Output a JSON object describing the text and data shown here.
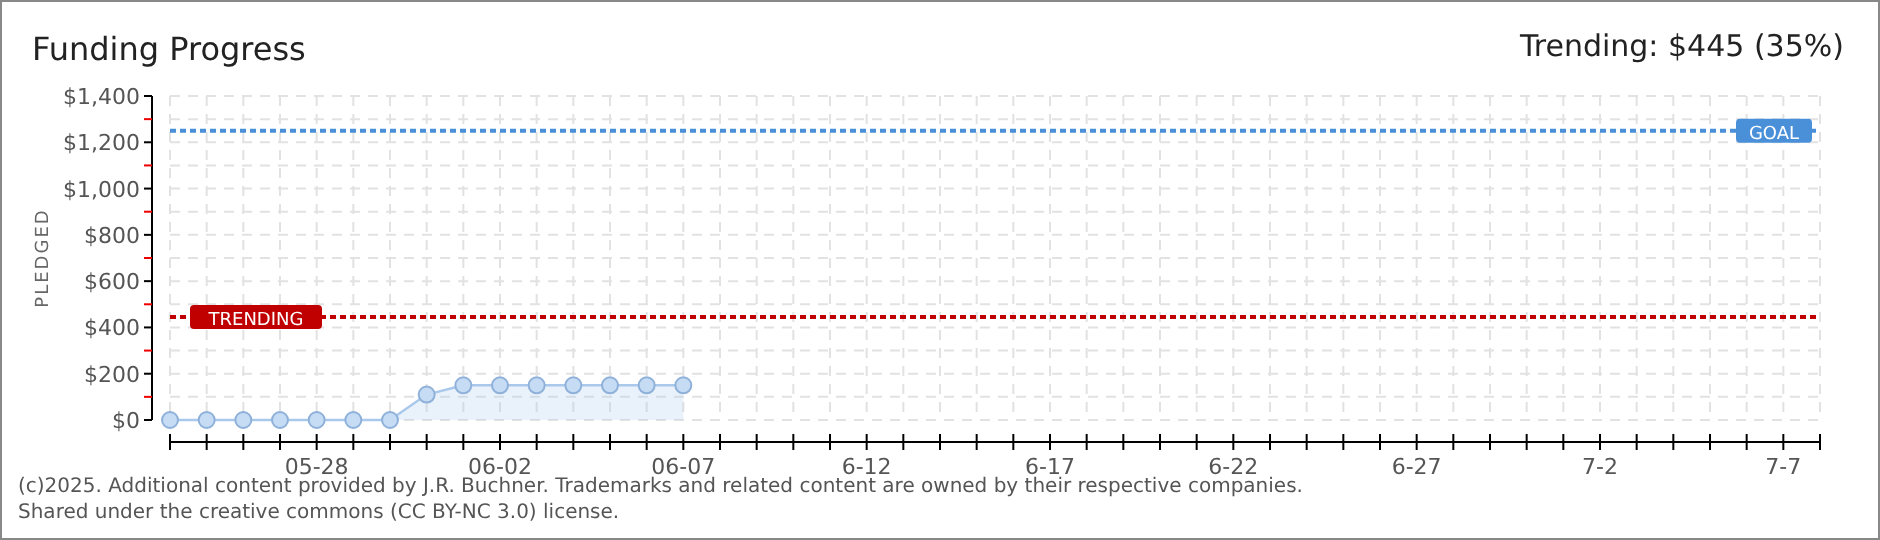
{
  "chart_data": {
    "type": "area",
    "title": "Funding Progress",
    "ylabel": "PLEDGED",
    "annotations": [
      "Trending: $445 (35%)",
      "(c)2025. Additional content provided by J.R. Buchner. Trademarks and related content are owned by their respective companies.",
      "Shared under the creative commons (CC BY-NC 3.0) license."
    ],
    "x": [
      "--05-24",
      "--05-25",
      "--05-26",
      "--05-27",
      "--05-28",
      "--05-29",
      "--05-30",
      "--05-31",
      "--06-01",
      "--06-02",
      "--06-03",
      "--06-04",
      "--06-05",
      "--06-06",
      "--06-07"
    ],
    "series": [
      {
        "color": "#a9c8ec",
        "values": [
          0,
          0,
          0,
          0,
          0,
          0,
          0,
          110,
          150,
          150,
          150,
          150,
          150,
          150,
          150
        ]
      }
    ],
    "marker": "circle",
    "grid": true,
    "xlim": [
      "--05-24",
      "--07-08"
    ],
    "xticks": [
      {
        "value": "--05-24",
        "label": null
      },
      {
        "value": "--05-25",
        "label": null
      },
      {
        "value": "--05-26",
        "label": null
      },
      {
        "value": "--05-27",
        "label": null
      },
      {
        "value": "--05-28",
        "label": "05-28"
      },
      {
        "value": "--05-29",
        "label": null
      },
      {
        "value": "--05-30",
        "label": null
      },
      {
        "value": "--05-31",
        "label": null
      },
      {
        "value": "--06-01",
        "label": null
      },
      {
        "value": "--06-02",
        "label": "06-02"
      },
      {
        "value": "--06-03",
        "label": null
      },
      {
        "value": "--06-04",
        "label": null
      },
      {
        "value": "--06-05",
        "label": null
      },
      {
        "value": "--06-06",
        "label": null
      },
      {
        "value": "--06-07",
        "label": "06-07"
      },
      {
        "value": "--06-08",
        "label": null
      },
      {
        "value": "--06-09",
        "label": null
      },
      {
        "value": "--06-10",
        "label": null
      },
      {
        "value": "--06-11",
        "label": null
      },
      {
        "value": "--06-12",
        "label": "6-12"
      },
      {
        "value": "--06-13",
        "label": null
      },
      {
        "value": "--06-14",
        "label": null
      },
      {
        "value": "--06-15",
        "label": null
      },
      {
        "value": "--06-16",
        "label": null
      },
      {
        "value": "--06-17",
        "label": "6-17"
      },
      {
        "value": "--06-18",
        "label": null
      },
      {
        "value": "--06-19",
        "label": null
      },
      {
        "value": "--06-20",
        "label": null
      },
      {
        "value": "--06-21",
        "label": null
      },
      {
        "value": "--06-22",
        "label": "6-22"
      },
      {
        "value": "--06-23",
        "label": null
      },
      {
        "value": "--06-24",
        "label": null
      },
      {
        "value": "--06-25",
        "label": null
      },
      {
        "value": "--06-26",
        "label": null
      },
      {
        "value": "--06-27",
        "label": "6-27"
      },
      {
        "value": "--06-28",
        "label": null
      },
      {
        "value": "--06-29",
        "label": null
      },
      {
        "value": "--06-30",
        "label": null
      },
      {
        "value": "--07-01",
        "label": null
      },
      {
        "value": "--07-02",
        "label": "7-2"
      },
      {
        "value": "--07-03",
        "label": null
      },
      {
        "value": "--07-04",
        "label": null
      },
      {
        "value": "--07-05",
        "label": null
      },
      {
        "value": "--07-06",
        "label": null
      },
      {
        "value": "--07-07",
        "label": "7-7"
      },
      {
        "value": "--07-08",
        "label": null
      }
    ],
    "ylim": [
      0,
      1400
    ],
    "yticks": [
      {
        "value": 0,
        "label": "$0"
      },
      {
        "value": 100,
        "label": null
      },
      {
        "value": 200,
        "label": "$200"
      },
      {
        "value": 300,
        "label": null
      },
      {
        "value": 400,
        "label": "$400"
      },
      {
        "value": 500,
        "label": null
      },
      {
        "value": 600,
        "label": "$600"
      },
      {
        "value": 700,
        "label": null
      },
      {
        "value": 800,
        "label": "$800"
      },
      {
        "value": 900,
        "label": null
      },
      {
        "value": 1000,
        "label": "$1,000"
      },
      {
        "value": 1100,
        "label": null
      },
      {
        "value": 1200,
        "label": "$1,200"
      },
      {
        "value": 1300,
        "label": null
      },
      {
        "value": 1400,
        "label": "$1,400"
      }
    ],
    "ref_lines": [
      {
        "axis": "y",
        "value": 1250,
        "label": "GOAL",
        "color": "#4a90d9",
        "line_style": "dotted"
      },
      {
        "axis": "y",
        "value": 445,
        "label": "TRENDING",
        "color": "#c00000",
        "line_style": "dotted"
      }
    ]
  }
}
